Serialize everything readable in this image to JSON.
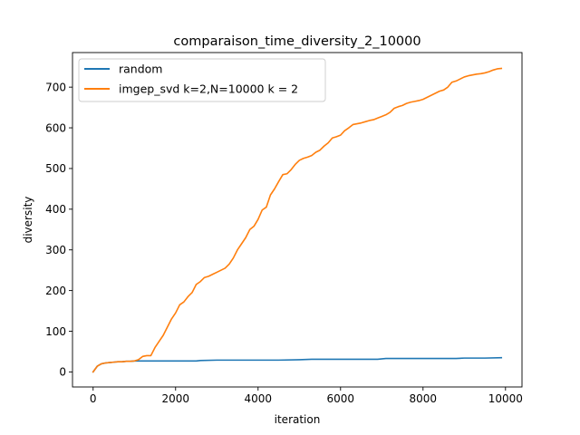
{
  "chart_data": {
    "type": "line",
    "title": "comparaison_time_diversity_2_10000",
    "xlabel": "iteration",
    "ylabel": "diversity",
    "xlim": [
      -500,
      10400
    ],
    "ylim": [
      -37,
      785
    ],
    "xticks": [
      0,
      2000,
      4000,
      6000,
      8000,
      10000
    ],
    "yticks": [
      0,
      100,
      200,
      300,
      400,
      500,
      600,
      700
    ],
    "grid": false,
    "legend_position": "top-left",
    "series": [
      {
        "name": "random",
        "color": "#1f77b4",
        "points": [
          [
            0,
            0
          ],
          [
            100,
            14
          ],
          [
            200,
            20
          ],
          [
            300,
            22
          ],
          [
            400,
            23
          ],
          [
            500,
            24
          ],
          [
            600,
            25
          ],
          [
            700,
            25
          ],
          [
            800,
            26
          ],
          [
            900,
            26
          ],
          [
            1000,
            27
          ],
          [
            1200,
            27
          ],
          [
            1500,
            27
          ],
          [
            2000,
            27
          ],
          [
            2500,
            27
          ],
          [
            2600,
            28
          ],
          [
            3000,
            29
          ],
          [
            3500,
            29
          ],
          [
            4000,
            29
          ],
          [
            4500,
            29
          ],
          [
            5000,
            30
          ],
          [
            5300,
            31
          ],
          [
            5500,
            31
          ],
          [
            6000,
            31
          ],
          [
            6500,
            31
          ],
          [
            6900,
            31
          ],
          [
            7100,
            33
          ],
          [
            7500,
            33
          ],
          [
            8000,
            33
          ],
          [
            8500,
            33
          ],
          [
            8800,
            33
          ],
          [
            9000,
            34
          ],
          [
            9500,
            34
          ],
          [
            9900,
            35
          ]
        ]
      },
      {
        "name": "imgep_svd k=2,N=10000 k = 2",
        "color": "#ff7f0e",
        "points": [
          [
            0,
            0
          ],
          [
            100,
            14
          ],
          [
            200,
            20
          ],
          [
            300,
            22
          ],
          [
            400,
            23
          ],
          [
            500,
            24
          ],
          [
            600,
            25
          ],
          [
            700,
            25
          ],
          [
            800,
            26
          ],
          [
            900,
            26
          ],
          [
            1000,
            27
          ],
          [
            1100,
            30
          ],
          [
            1200,
            38
          ],
          [
            1300,
            40
          ],
          [
            1400,
            40
          ],
          [
            1500,
            60
          ],
          [
            1600,
            75
          ],
          [
            1700,
            90
          ],
          [
            1800,
            110
          ],
          [
            1900,
            130
          ],
          [
            2000,
            145
          ],
          [
            2100,
            165
          ],
          [
            2200,
            172
          ],
          [
            2300,
            185
          ],
          [
            2400,
            195
          ],
          [
            2500,
            215
          ],
          [
            2600,
            222
          ],
          [
            2700,
            232
          ],
          [
            2800,
            235
          ],
          [
            2900,
            240
          ],
          [
            3000,
            245
          ],
          [
            3100,
            250
          ],
          [
            3200,
            255
          ],
          [
            3300,
            265
          ],
          [
            3400,
            280
          ],
          [
            3500,
            300
          ],
          [
            3600,
            315
          ],
          [
            3700,
            330
          ],
          [
            3800,
            350
          ],
          [
            3900,
            358
          ],
          [
            4000,
            375
          ],
          [
            4100,
            398
          ],
          [
            4200,
            405
          ],
          [
            4300,
            435
          ],
          [
            4400,
            450
          ],
          [
            4500,
            468
          ],
          [
            4600,
            485
          ],
          [
            4700,
            487
          ],
          [
            4800,
            497
          ],
          [
            4900,
            510
          ],
          [
            5000,
            520
          ],
          [
            5100,
            525
          ],
          [
            5200,
            528
          ],
          [
            5300,
            532
          ],
          [
            5400,
            540
          ],
          [
            5500,
            545
          ],
          [
            5600,
            555
          ],
          [
            5700,
            563
          ],
          [
            5800,
            575
          ],
          [
            5900,
            578
          ],
          [
            6000,
            582
          ],
          [
            6100,
            593
          ],
          [
            6200,
            600
          ],
          [
            6300,
            608
          ],
          [
            6400,
            610
          ],
          [
            6500,
            612
          ],
          [
            6600,
            615
          ],
          [
            6700,
            618
          ],
          [
            6800,
            620
          ],
          [
            6900,
            624
          ],
          [
            7000,
            628
          ],
          [
            7100,
            632
          ],
          [
            7200,
            638
          ],
          [
            7300,
            648
          ],
          [
            7400,
            652
          ],
          [
            7500,
            655
          ],
          [
            7600,
            660
          ],
          [
            7700,
            663
          ],
          [
            7800,
            665
          ],
          [
            7900,
            667
          ],
          [
            8000,
            670
          ],
          [
            8100,
            675
          ],
          [
            8200,
            680
          ],
          [
            8300,
            685
          ],
          [
            8400,
            690
          ],
          [
            8500,
            693
          ],
          [
            8600,
            700
          ],
          [
            8700,
            712
          ],
          [
            8800,
            715
          ],
          [
            8900,
            720
          ],
          [
            9000,
            725
          ],
          [
            9100,
            728
          ],
          [
            9200,
            730
          ],
          [
            9300,
            732
          ],
          [
            9400,
            733
          ],
          [
            9500,
            735
          ],
          [
            9600,
            738
          ],
          [
            9700,
            742
          ],
          [
            9800,
            745
          ],
          [
            9900,
            746
          ]
        ]
      }
    ]
  }
}
